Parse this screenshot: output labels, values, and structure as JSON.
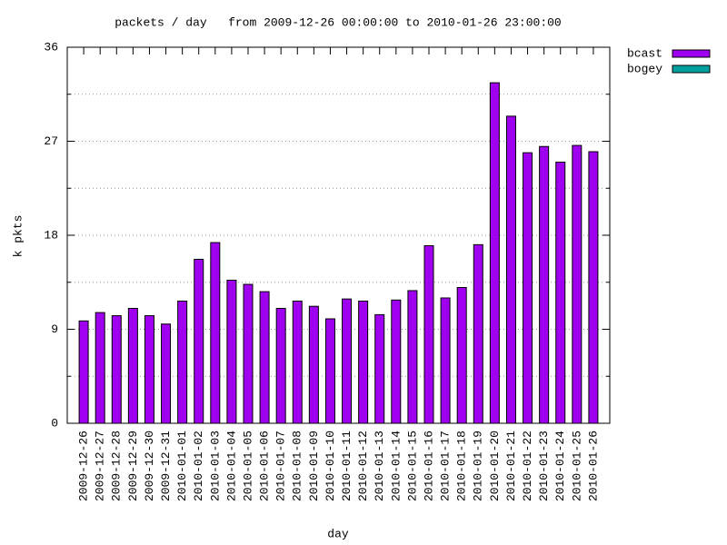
{
  "chart_data": {
    "type": "bar",
    "title": "packets / day   from 2009-12-26 00:00:00 to 2010-01-26 23:00:00",
    "x_label": "day",
    "y_label": "k pkts",
    "categories": [
      "2009-12-26",
      "2009-12-27",
      "2009-12-28",
      "2009-12-29",
      "2009-12-30",
      "2009-12-31",
      "2010-01-01",
      "2010-01-02",
      "2010-01-03",
      "2010-01-04",
      "2010-01-05",
      "2010-01-06",
      "2010-01-07",
      "2010-01-08",
      "2010-01-09",
      "2010-01-10",
      "2010-01-11",
      "2010-01-12",
      "2010-01-13",
      "2010-01-14",
      "2010-01-15",
      "2010-01-16",
      "2010-01-17",
      "2010-01-18",
      "2010-01-19",
      "2010-01-20",
      "2010-01-21",
      "2010-01-22",
      "2010-01-23",
      "2010-01-24",
      "2010-01-25",
      "2010-01-26"
    ],
    "series": [
      {
        "name": "bcast",
        "color": "#a000f0",
        "values": [
          9.8,
          10.6,
          10.3,
          11.0,
          10.3,
          9.5,
          11.7,
          15.7,
          17.3,
          13.7,
          13.3,
          12.6,
          11.0,
          11.7,
          11.2,
          10.0,
          11.9,
          11.7,
          10.4,
          11.8,
          12.7,
          17.0,
          12.0,
          13.0,
          17.1,
          32.6,
          29.4,
          25.9,
          26.5,
          25.0,
          26.6,
          26.0
        ]
      },
      {
        "name": "bogey",
        "color": "#00a0a0",
        "values": [
          null,
          null,
          null,
          null,
          null,
          null,
          null,
          null,
          null,
          null,
          null,
          null,
          null,
          null,
          null,
          null,
          null,
          null,
          null,
          null,
          null,
          null,
          null,
          null,
          null,
          null,
          null,
          null,
          null,
          null,
          null,
          null
        ]
      }
    ],
    "ylim": [
      0,
      36
    ],
    "yticks": [
      0,
      9,
      18,
      27,
      36
    ],
    "minor_yticks": [
      4.5,
      13.5,
      22.5,
      31.5
    ],
    "grid": true,
    "legend": "outside-right"
  }
}
